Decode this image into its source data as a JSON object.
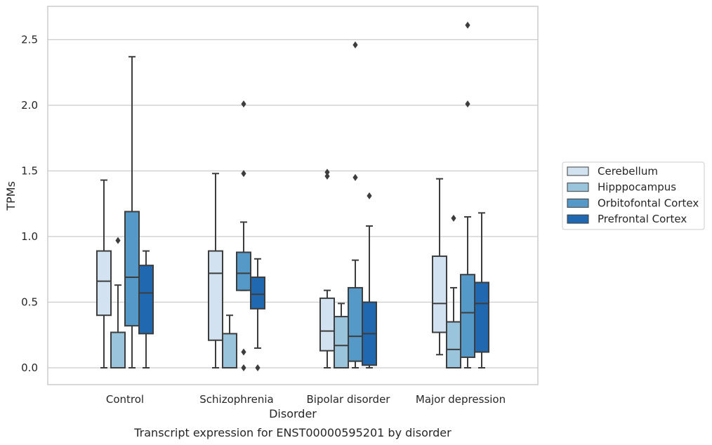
{
  "chart_data": {
    "type": "box",
    "title": "Transcript expression for ENST00000595201 by disorder",
    "xlabel": "Disorder",
    "ylabel": "TPMs",
    "ylim": [
      -0.12,
      2.75
    ],
    "yticks": [
      0.0,
      0.5,
      1.0,
      1.5,
      2.0,
      2.5
    ],
    "ytick_labels": [
      "0.0",
      "0.5",
      "1.0",
      "1.5",
      "2.0",
      "2.5"
    ],
    "grid": "horizontal",
    "legend_position": "right",
    "categories": [
      "Control",
      "Schizophrenia",
      "Bipolar disorder",
      "Major depression"
    ],
    "series": [
      {
        "name": "Cerebellum",
        "color": "#d2e2f1",
        "boxes": [
          {
            "whislo": 0.0,
            "q1": 0.4,
            "med": 0.66,
            "q3": 0.89,
            "whishi": 1.43,
            "fliers": []
          },
          {
            "whislo": 0.0,
            "q1": 0.21,
            "med": 0.72,
            "q3": 0.89,
            "whishi": 1.48,
            "fliers": []
          },
          {
            "whislo": 0.0,
            "q1": 0.13,
            "med": 0.28,
            "q3": 0.53,
            "whishi": 0.59,
            "fliers": [
              1.46,
              1.49
            ]
          },
          {
            "whislo": 0.1,
            "q1": 0.27,
            "med": 0.49,
            "q3": 0.85,
            "whishi": 1.44,
            "fliers": []
          }
        ]
      },
      {
        "name": "Hipppocampus",
        "color": "#9ac3dc",
        "boxes": [
          {
            "whislo": 0.0,
            "q1": 0.0,
            "med": 0.0,
            "q3": 0.27,
            "whishi": 0.63,
            "fliers": [
              0.97
            ]
          },
          {
            "whislo": 0.0,
            "q1": 0.0,
            "med": 0.0,
            "q3": 0.26,
            "whishi": 0.4,
            "fliers": []
          },
          {
            "whislo": 0.0,
            "q1": 0.0,
            "med": 0.17,
            "q3": 0.39,
            "whishi": 0.49,
            "fliers": []
          },
          {
            "whislo": 0.0,
            "q1": 0.0,
            "med": 0.14,
            "q3": 0.35,
            "whishi": 0.61,
            "fliers": [
              1.14
            ]
          }
        ]
      },
      {
        "name": "Orbitofontal Cortex",
        "color": "#5599c8",
        "boxes": [
          {
            "whislo": 0.0,
            "q1": 0.32,
            "med": 0.69,
            "q3": 1.19,
            "whishi": 2.37,
            "fliers": []
          },
          {
            "whislo": 0.59,
            "q1": 0.59,
            "med": 0.72,
            "q3": 0.88,
            "whishi": 1.11,
            "fliers": [
              0.0,
              0.12,
              1.48,
              2.01
            ]
          },
          {
            "whislo": 0.0,
            "q1": 0.05,
            "med": 0.24,
            "q3": 0.61,
            "whishi": 0.82,
            "fliers": [
              1.45,
              2.46
            ]
          },
          {
            "whislo": 0.0,
            "q1": 0.08,
            "med": 0.42,
            "q3": 0.71,
            "whishi": 1.15,
            "fliers": [
              2.01,
              2.61
            ]
          }
        ]
      },
      {
        "name": "Prefrontal Cortex",
        "color": "#2068b0",
        "boxes": [
          {
            "whislo": 0.0,
            "q1": 0.26,
            "med": 0.57,
            "q3": 0.78,
            "whishi": 0.89,
            "fliers": []
          },
          {
            "whislo": 0.15,
            "q1": 0.45,
            "med": 0.56,
            "q3": 0.69,
            "whishi": 0.83,
            "fliers": [
              0.0
            ]
          },
          {
            "whislo": 0.0,
            "q1": 0.02,
            "med": 0.26,
            "q3": 0.5,
            "whishi": 1.08,
            "fliers": [
              1.31
            ]
          },
          {
            "whislo": 0.0,
            "q1": 0.12,
            "med": 0.49,
            "q3": 0.65,
            "whishi": 1.18,
            "fliers": []
          }
        ]
      }
    ]
  }
}
